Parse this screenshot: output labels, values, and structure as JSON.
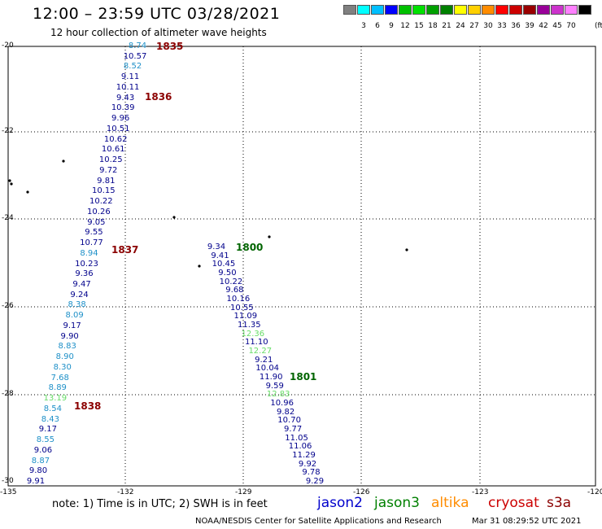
{
  "title": "12:00 – 23:59 UTC 03/28/2021",
  "subtitle": "12 hour collection of altimeter wave heights",
  "color_scale": {
    "unit": "(ft)",
    "bins": [
      {
        "label": "",
        "color": "#808080"
      },
      {
        "label": "3",
        "color": "#00ffff"
      },
      {
        "label": "6",
        "color": "#00bfff"
      },
      {
        "label": "9",
        "color": "#0000ff"
      },
      {
        "label": "12",
        "color": "#00c000"
      },
      {
        "label": "15",
        "color": "#00e000"
      },
      {
        "label": "18",
        "color": "#00a000"
      },
      {
        "label": "21",
        "color": "#008000"
      },
      {
        "label": "24",
        "color": "#ffff00"
      },
      {
        "label": "27",
        "color": "#ffd000"
      },
      {
        "label": "30",
        "color": "#ff8c00"
      },
      {
        "label": "33",
        "color": "#ff0000"
      },
      {
        "label": "36",
        "color": "#cc0000"
      },
      {
        "label": "39",
        "color": "#990000"
      },
      {
        "label": "42",
        "color": "#990099"
      },
      {
        "label": "45",
        "color": "#cc33cc"
      },
      {
        "label": "70",
        "color": "#ff80ff"
      },
      {
        "label": "",
        "color": "#000000"
      }
    ]
  },
  "axes": {
    "lat_labels": [
      "-20",
      "-22",
      "-24",
      "-26",
      "-28",
      "-30"
    ],
    "lon_labels": [
      "-135",
      "-132",
      "-129",
      "-126",
      "-123",
      "-120"
    ]
  },
  "tracks": [
    {
      "name": "pass-1835",
      "times": [
        {
          "label": "1835",
          "color": "#8b0000"
        },
        {
          "label": "1836",
          "color": "#8b0000"
        },
        {
          "label": "1837",
          "color": "#8b0000"
        },
        {
          "label": "1838",
          "color": "#8b0000"
        }
      ],
      "values": [
        {
          "v": "8.74",
          "c": "#1e90c8"
        },
        {
          "v": "10.57",
          "c": "#00008b"
        },
        {
          "v": "8.52",
          "c": "#1e90c8"
        },
        {
          "v": "9.11",
          "c": "#00008b"
        },
        {
          "v": "10.11",
          "c": "#00008b"
        },
        {
          "v": "9.43",
          "c": "#00008b"
        },
        {
          "v": "10.39",
          "c": "#00008b"
        },
        {
          "v": "9.96",
          "c": "#00008b"
        },
        {
          "v": "10.51",
          "c": "#00008b"
        },
        {
          "v": "10.62",
          "c": "#00008b"
        },
        {
          "v": "10.61",
          "c": "#00008b"
        },
        {
          "v": "10.25",
          "c": "#00008b"
        },
        {
          "v": "9.72",
          "c": "#00008b"
        },
        {
          "v": "9.81",
          "c": "#00008b"
        },
        {
          "v": "10.15",
          "c": "#00008b"
        },
        {
          "v": "10.22",
          "c": "#00008b"
        },
        {
          "v": "10.26",
          "c": "#00008b"
        },
        {
          "v": "9.05",
          "c": "#00008b"
        },
        {
          "v": "9.55",
          "c": "#00008b"
        },
        {
          "v": "10.77",
          "c": "#00008b"
        },
        {
          "v": "8.94",
          "c": "#1e90c8"
        },
        {
          "v": "10.23",
          "c": "#00008b"
        },
        {
          "v": "9.36",
          "c": "#00008b"
        },
        {
          "v": "9.47",
          "c": "#00008b"
        },
        {
          "v": "9.24",
          "c": "#00008b"
        },
        {
          "v": "8.38",
          "c": "#1e90c8"
        },
        {
          "v": "8.09",
          "c": "#1e90c8"
        },
        {
          "v": "9.17",
          "c": "#00008b"
        },
        {
          "v": "9.90",
          "c": "#00008b"
        },
        {
          "v": "8.83",
          "c": "#1e90c8"
        },
        {
          "v": "8.90",
          "c": "#1e90c8"
        },
        {
          "v": "8.30",
          "c": "#1e90c8"
        },
        {
          "v": "7.68",
          "c": "#1e90c8"
        },
        {
          "v": "8.89",
          "c": "#1e90c8"
        },
        {
          "v": "13.19",
          "c": "#66dd66"
        },
        {
          "v": "8.54",
          "c": "#1e90c8"
        },
        {
          "v": "8.43",
          "c": "#1e90c8"
        },
        {
          "v": "9.17",
          "c": "#00008b"
        },
        {
          "v": "8.55",
          "c": "#1e90c8"
        },
        {
          "v": "9.06",
          "c": "#00008b"
        },
        {
          "v": "8.87",
          "c": "#1e90c8"
        },
        {
          "v": "9.80",
          "c": "#00008b"
        },
        {
          "v": "9.91",
          "c": "#00008b"
        }
      ]
    },
    {
      "name": "pass-1800",
      "times": [
        {
          "label": "1800",
          "color": "#006400"
        },
        {
          "label": "1801",
          "color": "#006400"
        }
      ],
      "values": [
        {
          "v": "9.34",
          "c": "#00008b"
        },
        {
          "v": "9.41",
          "c": "#00008b"
        },
        {
          "v": "10.45",
          "c": "#00008b"
        },
        {
          "v": "9.50",
          "c": "#00008b"
        },
        {
          "v": "10.22",
          "c": "#00008b"
        },
        {
          "v": "9.68",
          "c": "#00008b"
        },
        {
          "v": "10.16",
          "c": "#00008b"
        },
        {
          "v": "10.55",
          "c": "#00008b"
        },
        {
          "v": "11.09",
          "c": "#00008b"
        },
        {
          "v": "11.35",
          "c": "#00008b"
        },
        {
          "v": "12.36",
          "c": "#66dd66"
        },
        {
          "v": "11.10",
          "c": "#00008b"
        },
        {
          "v": "12.27",
          "c": "#66dd66"
        },
        {
          "v": "9.21",
          "c": "#00008b"
        },
        {
          "v": "10.04",
          "c": "#00008b"
        },
        {
          "v": "11.90",
          "c": "#00008b"
        },
        {
          "v": "9.59",
          "c": "#00008b"
        },
        {
          "v": "12.83",
          "c": "#66dd66"
        },
        {
          "v": "10.96",
          "c": "#00008b"
        },
        {
          "v": "9.82",
          "c": "#00008b"
        },
        {
          "v": "10.70",
          "c": "#00008b"
        },
        {
          "v": "9.77",
          "c": "#00008b"
        },
        {
          "v": "11.05",
          "c": "#00008b"
        },
        {
          "v": "11.06",
          "c": "#00008b"
        },
        {
          "v": "11.29",
          "c": "#00008b"
        },
        {
          "v": "9.92",
          "c": "#00008b"
        },
        {
          "v": "9.78",
          "c": "#00008b"
        },
        {
          "v": "9.29",
          "c": "#00008b"
        }
      ]
    }
  ],
  "note": "note:  1) Time is in UTC;  2) SWH is in feet",
  "satellites": [
    {
      "name": "jason2",
      "color": "#0000cc"
    },
    {
      "name": "jason3",
      "color": "#008000"
    },
    {
      "name": "altika",
      "color": "#ff8c00"
    },
    {
      "name": "cryosat",
      "color": "#cc0000"
    },
    {
      "name": "s3a",
      "color": "#8b0000"
    }
  ],
  "credit": "NOAA/NESDIS Center for Satellite Applications and Research",
  "timestamp": "Mar 31 08:29:52 UTC 2021"
}
